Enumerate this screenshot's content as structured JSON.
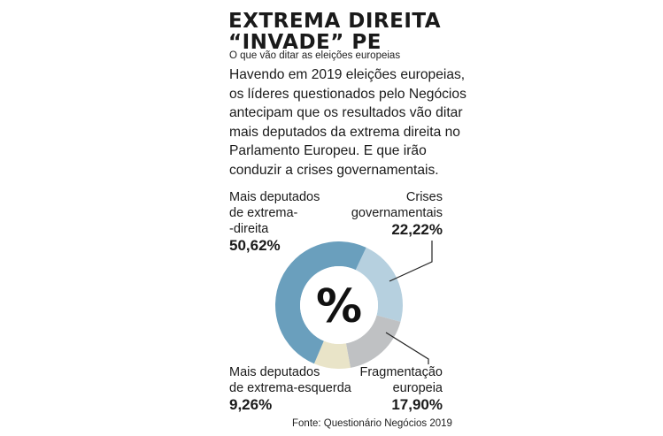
{
  "title_line1": "EXTREMA DIREITA",
  "title_line2": "“INVADE” PE",
  "subtitle": "O que vão ditar as eleições europeias",
  "intro": "Havendo em 2019 eleições europeias, os líderes questionados pelo Negócios antecipam que os resultados vão ditar mais deputados da extrema direita no Parlamento Europeu. E que irão conduzir a crises governamentais.",
  "center_symbol": "%",
  "source": "Fonte: Questionário Negócios 2019",
  "chart_data": {
    "type": "pie",
    "donut": true,
    "categories": [
      "Mais deputados de extrema-direita",
      "Crises governamentais",
      "Fragmentação europeia",
      "Mais deputados de extrema-esquerda"
    ],
    "values": [
      50.62,
      22.22,
      17.9,
      9.26
    ],
    "value_labels": [
      "50,62%",
      "22,22%",
      "17,90%",
      "9,26%"
    ],
    "label_lines": [
      [
        "Mais deputados",
        "de extrema-",
        "-direita"
      ],
      [
        "Crises",
        "governamentais"
      ],
      [
        "Fragmentação",
        "europeia"
      ],
      [
        "Mais deputados",
        "de extrema-esquerda"
      ]
    ],
    "colors": [
      "#6a9fbd",
      "#b6d0df",
      "#bfc1c3",
      "#e9e4c8"
    ],
    "legend": "none"
  }
}
